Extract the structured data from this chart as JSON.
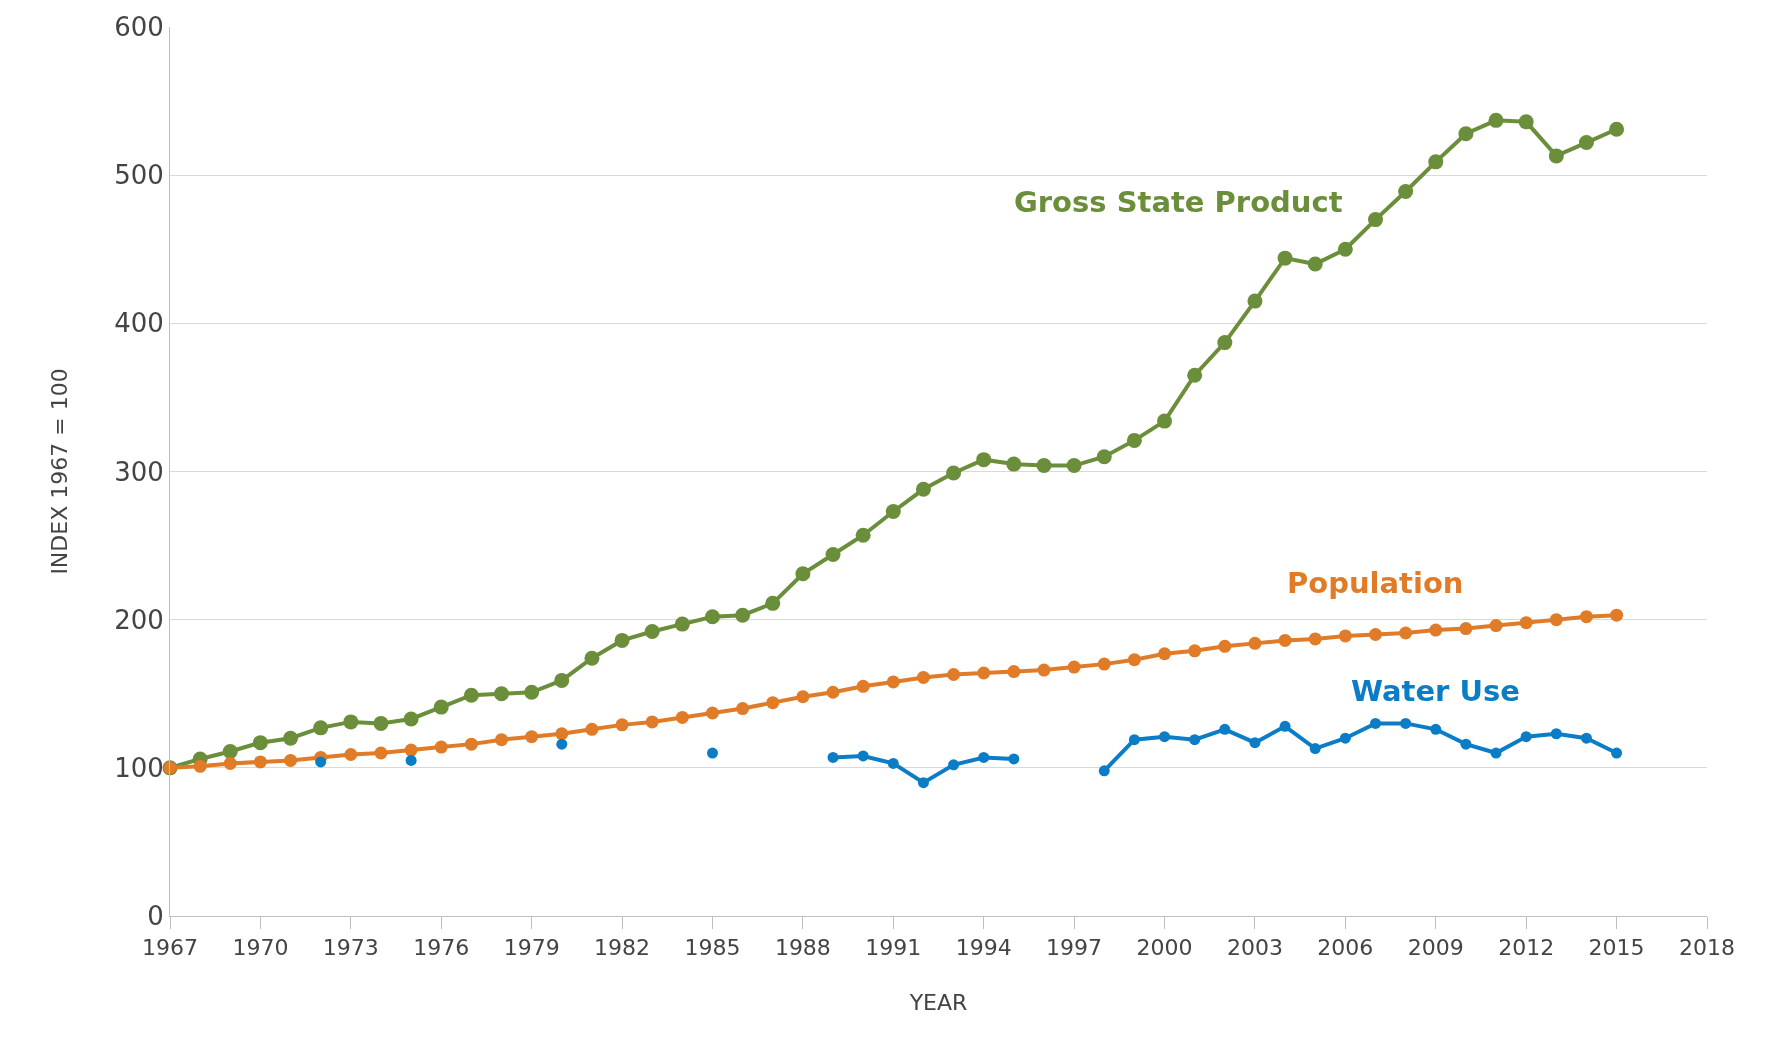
{
  "chart_data": {
    "type": "line",
    "xlabel": "YEAR",
    "ylabel": "INDEX 1967 = 100",
    "x": [
      1967,
      1968,
      1969,
      1970,
      1971,
      1972,
      1973,
      1974,
      1975,
      1976,
      1977,
      1978,
      1979,
      1980,
      1981,
      1982,
      1983,
      1984,
      1985,
      1986,
      1987,
      1988,
      1989,
      1990,
      1991,
      1992,
      1993,
      1994,
      1995,
      1996,
      1997,
      1998,
      1999,
      2000,
      2001,
      2002,
      2003,
      2004,
      2005,
      2006,
      2007,
      2008,
      2009,
      2010,
      2011,
      2012,
      2013,
      2014,
      2015
    ],
    "series": [
      {
        "name": "Gross State Product",
        "color": "#6a8e3a",
        "values": [
          100,
          106,
          111,
          117,
          120,
          127,
          131,
          130,
          133,
          141,
          149,
          150,
          151,
          159,
          174,
          186,
          192,
          197,
          202,
          203,
          211,
          231,
          244,
          257,
          273,
          288,
          299,
          308,
          305,
          304,
          304,
          310,
          321,
          334,
          365,
          387,
          415,
          444,
          440,
          450,
          470,
          489,
          509,
          528,
          537,
          536,
          513,
          522,
          531
        ]
      },
      {
        "name": "Population",
        "color": "#e07b28",
        "values": [
          100,
          101,
          103,
          104,
          105,
          107,
          109,
          110,
          112,
          114,
          116,
          119,
          121,
          123,
          126,
          129,
          131,
          134,
          137,
          140,
          144,
          148,
          151,
          155,
          158,
          161,
          163,
          164,
          165,
          166,
          168,
          170,
          173,
          177,
          179,
          182,
          184,
          186,
          187,
          189,
          190,
          191,
          193,
          194,
          196,
          198,
          200,
          202,
          203
        ]
      },
      {
        "name": "Water Use",
        "color": "#0a7dc6",
        "values": [
          null,
          null,
          null,
          null,
          null,
          104,
          null,
          null,
          105,
          null,
          null,
          null,
          null,
          116,
          null,
          null,
          null,
          null,
          110,
          null,
          null,
          null,
          107,
          108,
          103,
          90,
          102,
          107,
          106,
          null,
          null,
          98,
          119,
          121,
          119,
          126,
          117,
          128,
          113,
          120,
          130,
          130,
          126,
          116,
          110,
          121,
          123,
          120,
          110
        ]
      }
    ],
    "xlim": [
      1967,
      2018
    ],
    "xticks": [
      1967,
      1970,
      1973,
      1976,
      1979,
      1982,
      1985,
      1988,
      1991,
      1994,
      1997,
      2000,
      2003,
      2006,
      2009,
      2012,
      2015,
      2018
    ],
    "ylim": [
      0,
      600
    ],
    "yticks": [
      0,
      100,
      200,
      300,
      400,
      500,
      600
    ],
    "grid": "y",
    "marker": "circle",
    "line_style": "solid",
    "legend": false
  }
}
